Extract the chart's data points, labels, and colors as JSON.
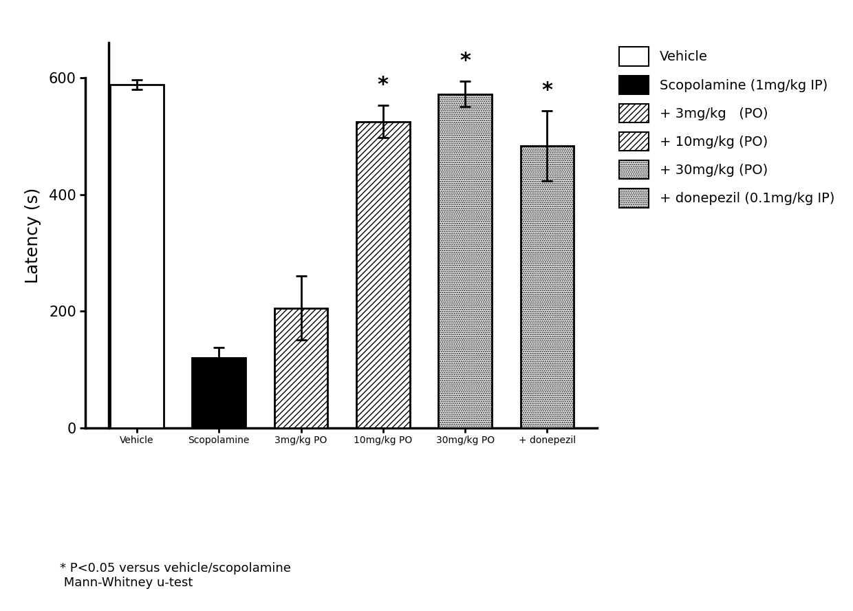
{
  "categories": [
    "Vehicle",
    "Scopolamine",
    "3mg/kg PO",
    "10mg/kg PO",
    "30mg/kg PO",
    "+ donepezil"
  ],
  "values": [
    588,
    120,
    205,
    525,
    572,
    483
  ],
  "errors": [
    8,
    18,
    55,
    28,
    22,
    60
  ],
  "significant": [
    false,
    false,
    false,
    true,
    true,
    true
  ],
  "ylabel": "Latency (s)",
  "ylim": [
    0,
    660
  ],
  "yticks": [
    0,
    200,
    400,
    600
  ],
  "legend_labels": [
    "Vehicle",
    "Scopolamine (1mg/kg IP)",
    "+ 3mg/kg   (PO)",
    "+ 10mg/kg (PO)",
    "+ 30mg/kg (PO)",
    "+ donepezil (0.1mg/kg IP)"
  ],
  "footnote_line1": "* P<0.05 versus vehicle/scopolamine",
  "footnote_line2": " Mann-Whitney u-test",
  "bar_edgecolor": "#000000",
  "bg_color": "#ffffff",
  "hatch_patterns": [
    "",
    "",
    "////",
    "////",
    "....",
    "...."
  ],
  "face_colors": [
    "white",
    "black",
    "white",
    "white",
    "white",
    "white"
  ],
  "legend_face_colors": [
    "white",
    "black",
    "white",
    "white",
    "white",
    "white"
  ],
  "legend_hatches": [
    "",
    "",
    "////",
    "////",
    "....",
    "...."
  ]
}
